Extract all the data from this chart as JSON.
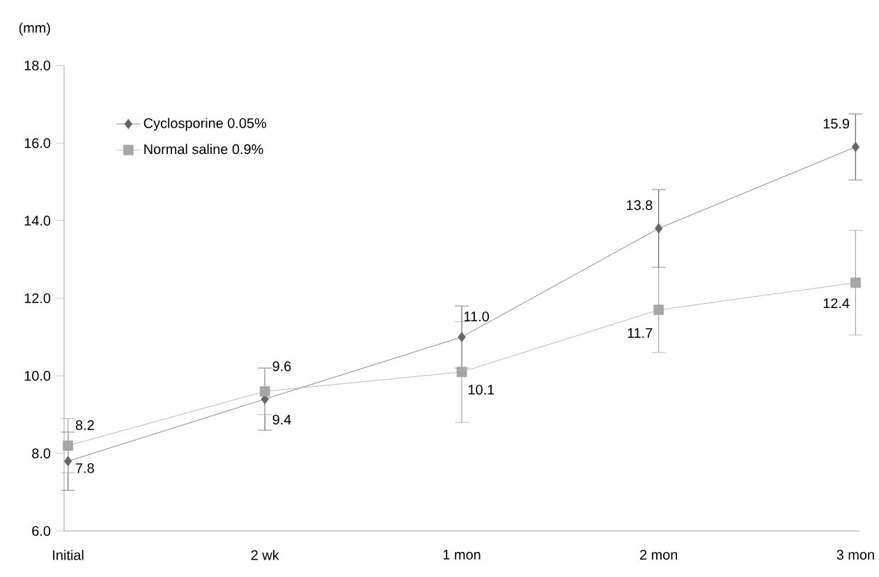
{
  "chart_data": {
    "type": "line",
    "ylabel": "(mm)",
    "categories": [
      "Initial",
      "2 wk",
      "1 mon",
      "2 mon",
      "3 mon"
    ],
    "series": [
      {
        "name": "Cyclosporine 0.05%",
        "color": "#666666",
        "marker": "diamond",
        "values": [
          7.8,
          9.4,
          11.0,
          13.8,
          15.9
        ],
        "value_labels": [
          "7.8",
          "9.4",
          "11.0",
          "13.8",
          "15.9"
        ],
        "errors": [
          0.75,
          0.8,
          0.8,
          1.0,
          0.85
        ]
      },
      {
        "name": "Normal saline 0.9%",
        "color": "#a6a6a6",
        "marker": "square",
        "values": [
          8.2,
          9.6,
          10.1,
          11.7,
          12.4
        ],
        "value_labels": [
          "8.2",
          "9.6",
          "10.1",
          "11.7",
          "12.4"
        ],
        "errors": [
          0.7,
          0.6,
          1.3,
          1.1,
          1.35
        ]
      }
    ],
    "ylim": [
      6,
      18
    ],
    "yticks": [
      {
        "value": 6,
        "label": "6.0"
      },
      {
        "value": 8,
        "label": "8.0"
      },
      {
        "value": 10,
        "label": "10.0"
      },
      {
        "value": 12,
        "label": "12.0"
      },
      {
        "value": 14,
        "label": "14.0"
      },
      {
        "value": 16,
        "label": "16.0"
      },
      {
        "value": 18,
        "label": "18.0"
      }
    ],
    "grid": false,
    "legend": "top left",
    "line_style": "solid"
  }
}
